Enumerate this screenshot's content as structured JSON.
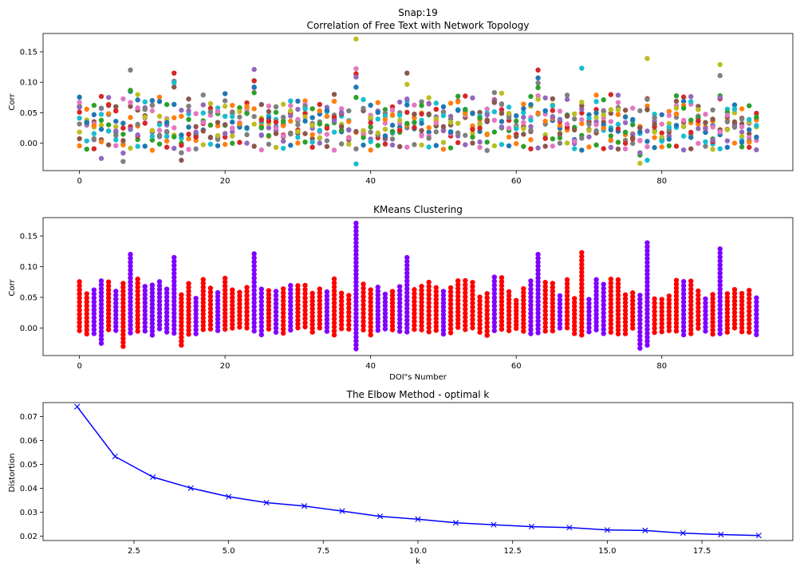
{
  "figure": {
    "suptitle": "Snap:19"
  },
  "palette": {
    "tab10": [
      "#1f77b4",
      "#ff7f0e",
      "#2ca02c",
      "#d62728",
      "#9467bd",
      "#8c564b",
      "#e377c2",
      "#7f7f7f",
      "#bcbd22",
      "#17becf"
    ],
    "cluster_red": "#ff0000",
    "cluster_purple": "#8000ff",
    "elbow_line": "#0000ff"
  },
  "chart_data": [
    {
      "type": "scatter",
      "title": "Correlation of Free Text with Network Topology",
      "xlabel": "",
      "ylabel": "Corr",
      "xlim": [
        -5,
        98
      ],
      "ylim": [
        -0.045,
        0.18
      ],
      "xticks": [
        0,
        20,
        40,
        60,
        80
      ],
      "yticks": [
        0.0,
        0.05,
        0.1,
        0.15
      ],
      "ytick_labels": [
        "0.00",
        "0.05",
        "0.10",
        "0.15"
      ],
      "legend": "none",
      "grid": false,
      "x_count": 94,
      "points_per_x": 10,
      "color_scheme": "tab10",
      "column_max": {
        "7": 0.12,
        "13": 0.115,
        "24": 0.121,
        "38": 0.171,
        "45": 0.115,
        "63": 0.12,
        "69": 0.123,
        "78": 0.139,
        "88": 0.129
      },
      "column_min": {
        "3": -0.025,
        "6": -0.03,
        "14": -0.028,
        "38": -0.034,
        "77": -0.033,
        "78": -0.028
      }
    },
    {
      "type": "scatter",
      "title": "KMeans Clustering",
      "xlabel": "DOI\"s Number",
      "ylabel": "Corr",
      "xlim": [
        -5,
        98
      ],
      "ylim": [
        -0.045,
        0.18
      ],
      "xticks": [
        0,
        20,
        40,
        60,
        80
      ],
      "yticks": [
        0.0,
        0.05,
        0.1,
        0.15
      ],
      "ytick_labels": [
        "0.00",
        "0.05",
        "0.10",
        "0.15"
      ],
      "legend": "none",
      "grid": false,
      "clusters": 2,
      "cluster_colors": [
        "#ff0000",
        "#8000ff"
      ],
      "purple_columns": [
        2,
        3,
        5,
        7,
        9,
        10,
        11,
        12,
        13,
        16,
        19,
        24,
        25,
        27,
        29,
        34,
        38,
        41,
        42,
        44,
        45,
        50,
        57,
        62,
        63,
        66,
        70,
        71,
        72,
        77,
        78,
        83,
        86,
        88,
        93
      ]
    },
    {
      "type": "line",
      "title": "The Elbow Method - optimal k",
      "xlabel": "k",
      "ylabel": "Distortion",
      "xlim": [
        0.1,
        19.9
      ],
      "ylim": [
        0.0182,
        0.0758
      ],
      "xticks": [
        2.5,
        5.0,
        7.5,
        10.0,
        12.5,
        15.0,
        17.5
      ],
      "xtick_labels": [
        "2.5",
        "5.0",
        "7.5",
        "10.0",
        "12.5",
        "15.0",
        "17.5"
      ],
      "yticks": [
        0.02,
        0.03,
        0.04,
        0.05,
        0.06,
        0.07
      ],
      "ytick_labels": [
        "0.02",
        "0.03",
        "0.04",
        "0.05",
        "0.06",
        "0.07"
      ],
      "legend": "none",
      "grid": false,
      "marker": "x",
      "x": [
        1,
        2,
        3,
        4,
        5,
        6,
        7,
        8,
        9,
        10,
        11,
        12,
        13,
        14,
        15,
        16,
        17,
        18,
        19
      ],
      "y": [
        0.0741,
        0.0533,
        0.0447,
        0.0401,
        0.0365,
        0.034,
        0.0326,
        0.0305,
        0.0283,
        0.0271,
        0.0256,
        0.0248,
        0.024,
        0.0236,
        0.0226,
        0.0224,
        0.0213,
        0.0207,
        0.0203
      ]
    }
  ]
}
